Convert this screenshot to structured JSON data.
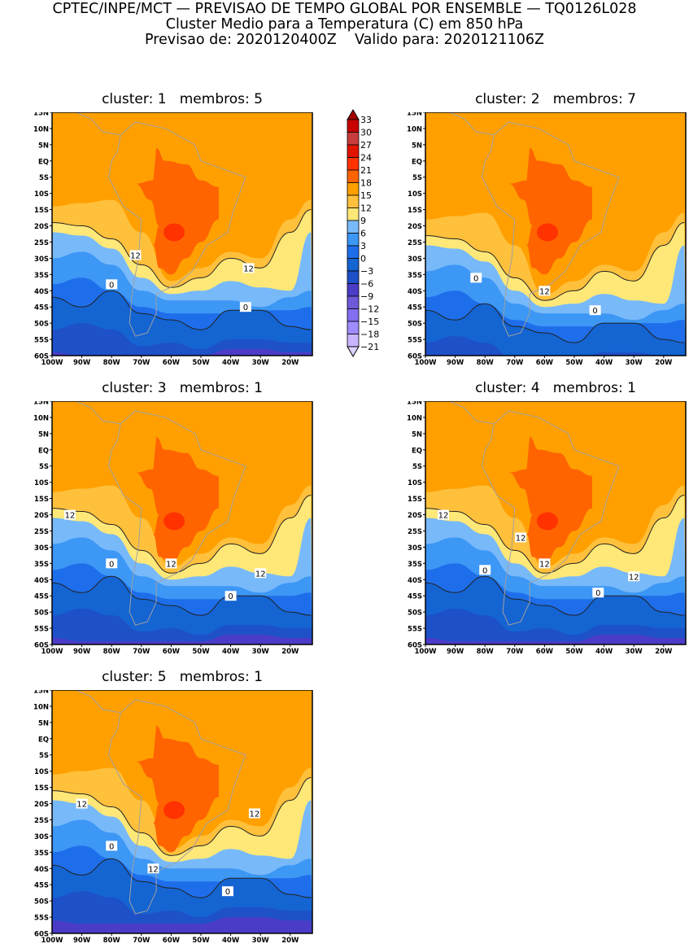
{
  "header": {
    "line1": "CPTEC/INPE/MCT — PREVISAO DE TEMPO GLOBAL POR ENSEMBLE — TQ0126L028",
    "line2": "Cluster Medio para a Temperatura (C) em 850 hPa",
    "line3": "Previsao de: 2020120400Z    Valido para: 2020121106Z"
  },
  "axes": {
    "lat_ticks": [
      "15N",
      "10N",
      "5N",
      "EQ",
      "5S",
      "10S",
      "15S",
      "20S",
      "25S",
      "30S",
      "35S",
      "40S",
      "45S",
      "50S",
      "55S",
      "60S"
    ],
    "lon_ticks": [
      "100W",
      "90W",
      "80W",
      "70W",
      "60W",
      "50W",
      "40W",
      "30W",
      "20W"
    ]
  },
  "panels": [
    {
      "title": "cluster: 1   membros: 5",
      "contour_labels": [
        "12",
        "12",
        "0",
        "0"
      ]
    },
    {
      "title": "cluster: 2   membros: 7",
      "contour_labels": [
        "0",
        "12",
        "0"
      ]
    },
    {
      "title": "cluster: 3   membros: 1",
      "contour_labels": [
        "12",
        "12",
        "12",
        "0",
        "0"
      ]
    },
    {
      "title": "cluster: 4   membros: 1",
      "contour_labels": [
        "12",
        "12",
        "12",
        "12",
        "0",
        "0"
      ]
    },
    {
      "title": "cluster: 5   membros: 1",
      "contour_labels": [
        "12",
        "12",
        "12",
        "0",
        "0"
      ]
    }
  ],
  "colorbar": {
    "labels": [
      "33",
      "30",
      "27",
      "24",
      "21",
      "18",
      "15",
      "12",
      "9",
      "6",
      "3",
      "0",
      "−3",
      "−6",
      "−9",
      "−12",
      "−15",
      "−18",
      "−21"
    ],
    "colors": [
      "#a50000",
      "#c80000",
      "#c83c3c",
      "#e11400",
      "#ff3200",
      "#ff6400",
      "#ffa000",
      "#ffc03c",
      "#ffe878",
      "#78b9fa",
      "#3c97f5",
      "#1e6eeb",
      "#1464d2",
      "#1e50c8",
      "#4b3cc8",
      "#6e5ad7",
      "#826ef0",
      "#a08cff",
      "#c8b4ff",
      "#dcd2ff"
    ]
  }
}
